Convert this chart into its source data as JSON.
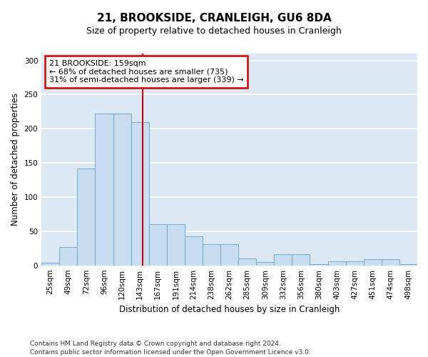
{
  "title": "21, BROOKSIDE, CRANLEIGH, GU6 8DA",
  "subtitle": "Size of property relative to detached houses in Cranleigh",
  "xlabel": "Distribution of detached houses by size in Cranleigh",
  "ylabel": "Number of detached properties",
  "categories": [
    "25sqm",
    "49sqm",
    "72sqm",
    "96sqm",
    "120sqm",
    "143sqm",
    "167sqm",
    "191sqm",
    "214sqm",
    "238sqm",
    "262sqm",
    "285sqm",
    "309sqm",
    "332sqm",
    "356sqm",
    "380sqm",
    "403sqm",
    "427sqm",
    "451sqm",
    "474sqm",
    "498sqm"
  ],
  "values": [
    4,
    27,
    142,
    222,
    222,
    210,
    60,
    60,
    43,
    31,
    31,
    10,
    5,
    16,
    16,
    2,
    6,
    6,
    9,
    9,
    2
  ],
  "bar_color": "#c9ddf0",
  "bar_edgecolor": "#7bafd4",
  "bg_color": "#dce9f5",
  "fig_bg_color": "#ffffff",
  "grid_color": "#ffffff",
  "annotation_text": "21 BROOKSIDE: 159sqm\n← 68% of detached houses are smaller (735)\n31% of semi-detached houses are larger (339) →",
  "annotation_box_facecolor": "#ffffff",
  "annotation_box_edgecolor": "#cc0000",
  "ref_line_color": "#cc0000",
  "ylim": [
    0,
    310
  ],
  "yticks": [
    0,
    50,
    100,
    150,
    200,
    250,
    300
  ],
  "footnote1": "Contains HM Land Registry data © Crown copyright and database right 2024.",
  "footnote2": "Contains public sector information licensed under the Open Government Licence v3.0.",
  "title_fontsize": 11,
  "subtitle_fontsize": 9,
  "axis_label_fontsize": 8.5,
  "tick_fontsize": 7.5,
  "annotation_fontsize": 8,
  "footnote_fontsize": 6.5
}
